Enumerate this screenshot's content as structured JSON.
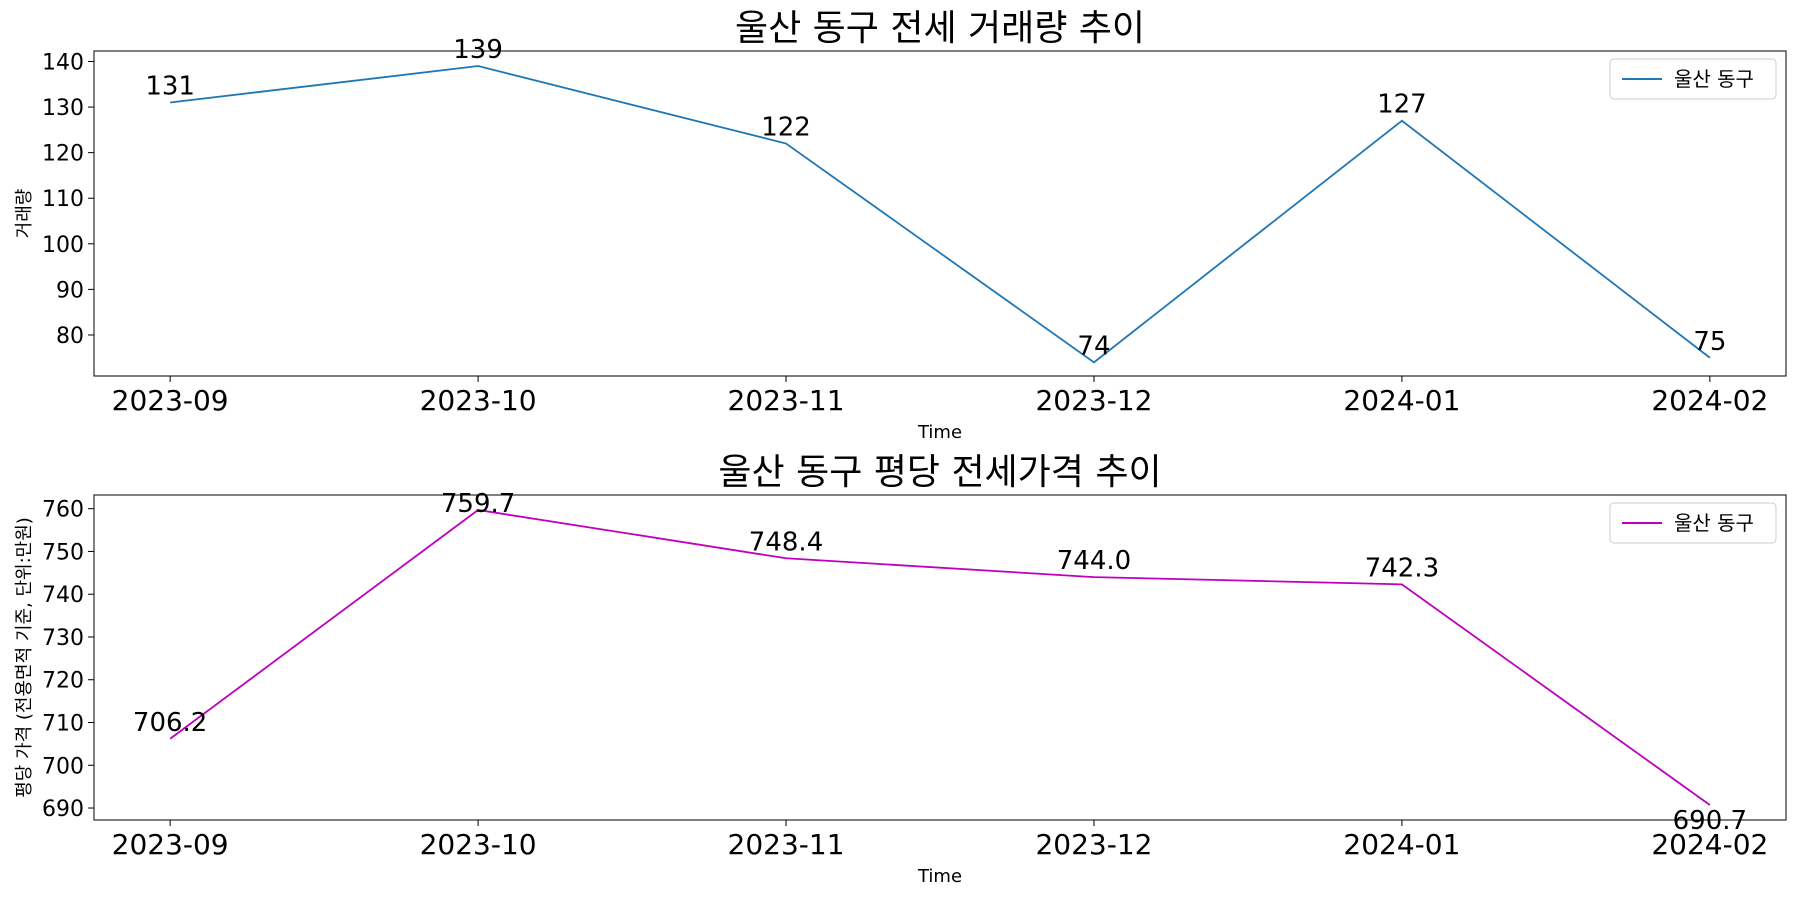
{
  "chart_data": [
    {
      "type": "line",
      "title": "울산 동구 전세 거래량 추이",
      "xlabel": "Time",
      "ylabel": "거래량",
      "categories": [
        "2023-09",
        "2023-10",
        "2023-11",
        "2023-12",
        "2024-01",
        "2024-02"
      ],
      "series": [
        {
          "name": "울산 동구",
          "color": "#1f77b4",
          "values": [
            131,
            139,
            122,
            74,
            127,
            75
          ]
        }
      ],
      "data_labels": [
        "131",
        "139",
        "122",
        "74",
        "127",
        "75"
      ],
      "ylim": [
        71,
        142.3
      ],
      "yticks": [
        80,
        90,
        100,
        110,
        120,
        130,
        140
      ],
      "legend": "top-right",
      "grid": false
    },
    {
      "type": "line",
      "title": "울산 동구 평당 전세가격 추이",
      "xlabel": "Time",
      "ylabel": "평당 가격 (전용면적 기준, 단위:만원)",
      "categories": [
        "2023-09",
        "2023-10",
        "2023-11",
        "2023-12",
        "2024-01",
        "2024-02"
      ],
      "series": [
        {
          "name": "울산 동구",
          "color": "#bf00bf",
          "values": [
            706.2,
            759.7,
            748.4,
            744.0,
            742.3,
            690.7
          ]
        }
      ],
      "data_labels": [
        "706.2",
        "759.7",
        "748.4",
        "744.0",
        "742.3",
        "690.7"
      ],
      "ylim": [
        687.2,
        763.2
      ],
      "yticks": [
        690,
        700,
        710,
        720,
        730,
        740,
        750,
        760
      ],
      "legend": "top-right",
      "grid": false
    }
  ]
}
